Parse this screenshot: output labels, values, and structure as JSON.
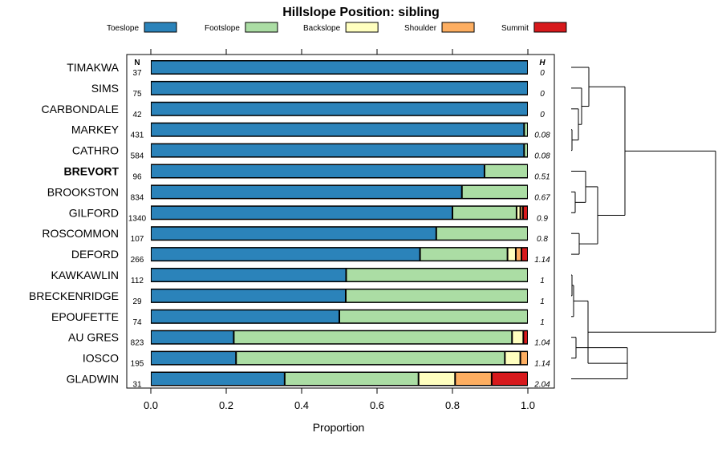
{
  "chart_data": {
    "type": "bar",
    "orientation": "horizontal",
    "stacked": true,
    "title": "Hillslope Position: sibling",
    "xlabel": "Proportion",
    "ylabel": "",
    "xlim": [
      0,
      1
    ],
    "xticks": [
      "0.0",
      "0.2",
      "0.4",
      "0.6",
      "0.8",
      "1.0"
    ],
    "n_header": "N",
    "h_header": "H",
    "highlight": "BREVORT",
    "legend": [
      {
        "name": "Toeslope",
        "color": "#2b83ba"
      },
      {
        "name": "Footslope",
        "color": "#abdda4"
      },
      {
        "name": "Backslope",
        "color": "#ffffbf"
      },
      {
        "name": "Shoulder",
        "color": "#fdae61"
      },
      {
        "name": "Summit",
        "color": "#d7191c"
      }
    ],
    "rows": [
      {
        "name": "TIMAKWA",
        "n": "37",
        "h": "0",
        "values": [
          1.0,
          0,
          0,
          0,
          0
        ]
      },
      {
        "name": "SIMS",
        "n": "75",
        "h": "0",
        "values": [
          1.0,
          0,
          0,
          0,
          0
        ]
      },
      {
        "name": "CARBONDALE",
        "n": "42",
        "h": "0",
        "values": [
          1.0,
          0,
          0,
          0,
          0
        ]
      },
      {
        "name": "MARKEY",
        "n": "431",
        "h": "0.08",
        "values": [
          0.99,
          0.01,
          0,
          0,
          0
        ]
      },
      {
        "name": "CATHRO",
        "n": "584",
        "h": "0.08",
        "values": [
          0.99,
          0.01,
          0,
          0,
          0
        ]
      },
      {
        "name": "BREVORT",
        "n": "96",
        "h": "0.51",
        "values": [
          0.885,
          0.115,
          0,
          0,
          0
        ]
      },
      {
        "name": "BROOKSTON",
        "n": "834",
        "h": "0.67",
        "values": [
          0.825,
          0.175,
          0,
          0,
          0
        ]
      },
      {
        "name": "GILFORD",
        "n": "1340",
        "h": "0.9",
        "values": [
          0.8,
          0.17,
          0.01,
          0.007,
          0.013
        ]
      },
      {
        "name": "ROSCOMMON",
        "n": "107",
        "h": "0.8",
        "values": [
          0.757,
          0.243,
          0,
          0,
          0
        ]
      },
      {
        "name": "DEFORD",
        "n": "266",
        "h": "1.14",
        "values": [
          0.714,
          0.232,
          0.022,
          0.015,
          0.017
        ]
      },
      {
        "name": "KAWKAWLIN",
        "n": "112",
        "h": "1",
        "values": [
          0.518,
          0.482,
          0,
          0,
          0
        ]
      },
      {
        "name": "BRECKENRIDGE",
        "n": "29",
        "h": "1",
        "values": [
          0.517,
          0.483,
          0,
          0,
          0
        ]
      },
      {
        "name": "EPOUFETTE",
        "n": "74",
        "h": "1",
        "values": [
          0.5,
          0.5,
          0,
          0,
          0
        ]
      },
      {
        "name": "AU GRES",
        "n": "823",
        "h": "1.04",
        "values": [
          0.22,
          0.738,
          0.03,
          0,
          0.012
        ]
      },
      {
        "name": "IOSCO",
        "n": "195",
        "h": "1.14",
        "values": [
          0.226,
          0.713,
          0.041,
          0.02,
          0
        ]
      },
      {
        "name": "GLADWIN",
        "n": "31",
        "h": "2.04",
        "values": [
          0.355,
          0.355,
          0.097,
          0.097,
          0.096
        ]
      }
    ]
  }
}
